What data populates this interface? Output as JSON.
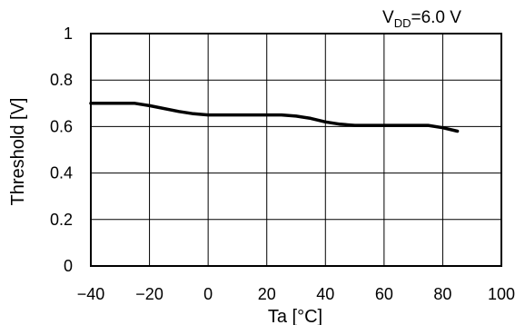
{
  "chart_data": {
    "type": "line",
    "title": "",
    "annotation": {
      "main": "V",
      "sub": "DD",
      "value": "=6.0 V"
    },
    "xlabel": "Ta [°C]",
    "ylabel": "Threshold [V]",
    "xlim": [
      -40,
      100
    ],
    "ylim": [
      0,
      1
    ],
    "xticks": [
      -40,
      -20,
      0,
      20,
      40,
      60,
      80,
      100
    ],
    "xtick_labels": [
      "−40",
      "−20",
      "0",
      "20",
      "40",
      "60",
      "80",
      "100"
    ],
    "yticks": [
      0,
      0.2,
      0.4,
      0.6,
      0.8,
      1
    ],
    "ytick_labels": [
      "0",
      "0.2",
      "0.4",
      "0.6",
      "0.8",
      "1"
    ],
    "grid": true,
    "legend": "none",
    "series": [
      {
        "color": "#000000",
        "x": [
          -40,
          -25,
          -20,
          -10,
          -5,
          0,
          10,
          20,
          25,
          30,
          35,
          40,
          45,
          50,
          60,
          70,
          75,
          80,
          85
        ],
        "y": [
          0.7,
          0.7,
          0.69,
          0.665,
          0.655,
          0.65,
          0.65,
          0.65,
          0.65,
          0.645,
          0.635,
          0.62,
          0.61,
          0.605,
          0.605,
          0.605,
          0.605,
          0.595,
          0.58
        ]
      }
    ]
  }
}
